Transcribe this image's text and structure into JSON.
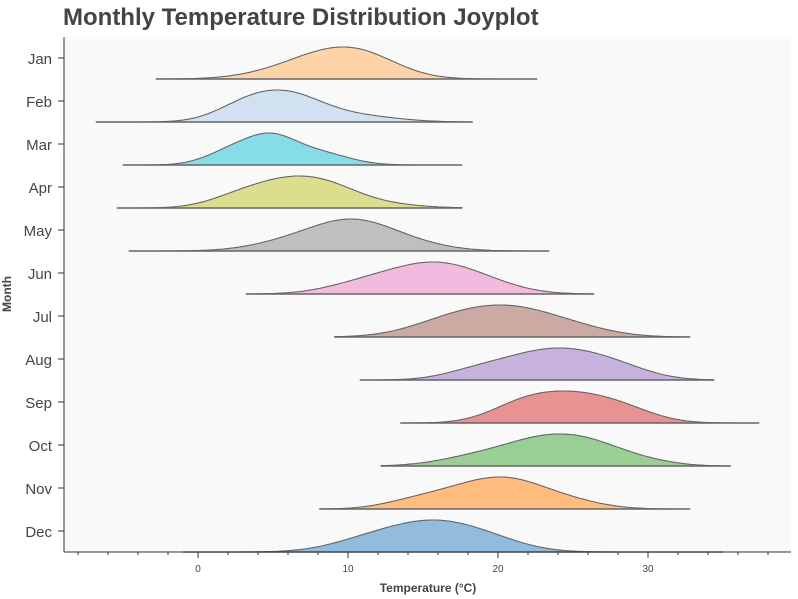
{
  "chart_data": {
    "type": "area",
    "title": "Monthly Temperature Distribution Joyplot",
    "xlabel": "Temperature (°C)",
    "ylabel": "Month",
    "xlim": [
      -9,
      39
    ],
    "xticks": [
      0,
      10,
      20,
      30
    ],
    "categories": [
      "Jan",
      "Feb",
      "Mar",
      "Apr",
      "May",
      "Jun",
      "Jul",
      "Aug",
      "Sep",
      "Oct",
      "Nov",
      "Dec"
    ],
    "grid": false,
    "background": "#f9f9f9",
    "series": [
      {
        "name": "Jan",
        "color": "#ffd1a3",
        "range": [
          -2.8,
          22.6
        ],
        "peaks": [
          [
            11,
            1.0,
            2.5
          ],
          [
            8,
            0.75,
            2.5
          ],
          [
            5,
            0.2,
            2.5
          ]
        ]
      },
      {
        "name": "Feb",
        "color": "#cfdff0",
        "range": [
          -6.8,
          18.3
        ],
        "peaks": [
          [
            6,
            1.0,
            2.4
          ],
          [
            3,
            0.45,
            2.0
          ],
          [
            11,
            0.2,
            2.5
          ]
        ]
      },
      {
        "name": "Mar",
        "color": "#7fdbe6",
        "range": [
          -5.0,
          17.6
        ],
        "peaks": [
          [
            5,
            1.0,
            1.6
          ],
          [
            2.5,
            0.7,
            1.8
          ],
          [
            8,
            0.55,
            2.0
          ]
        ]
      },
      {
        "name": "Apr",
        "color": "#dbdc87",
        "range": [
          -5.4,
          17.6
        ],
        "peaks": [
          [
            5.5,
            1.0,
            2.2
          ],
          [
            8.5,
            0.95,
            2.2
          ],
          [
            2.5,
            0.45,
            2.0
          ],
          [
            12,
            0.2,
            2.5
          ]
        ]
      },
      {
        "name": "May",
        "color": "#bcbcbc",
        "range": [
          -4.6,
          23.4
        ],
        "peaks": [
          [
            10.5,
            1.0,
            2.5
          ],
          [
            7,
            0.5,
            2.8
          ],
          [
            14,
            0.3,
            2.5
          ]
        ]
      },
      {
        "name": "Jun",
        "color": "#f0b6dd",
        "range": [
          3.2,
          26.4
        ],
        "peaks": [
          [
            15.5,
            1.0,
            2.8
          ],
          [
            11,
            0.35,
            2.5
          ],
          [
            19,
            0.3,
            2.5
          ]
        ]
      },
      {
        "name": "Jul",
        "color": "#c8a59f",
        "range": [
          9.1,
          32.8
        ],
        "peaks": [
          [
            21,
            1.0,
            2.8
          ],
          [
            17,
            0.7,
            2.8
          ],
          [
            25,
            0.35,
            2.6
          ]
        ]
      },
      {
        "name": "Aug",
        "color": "#c4aedb",
        "range": [
          10.8,
          34.4
        ],
        "peaks": [
          [
            24.5,
            1.0,
            2.6
          ],
          [
            21,
            0.6,
            2.6
          ],
          [
            28,
            0.45,
            2.3
          ],
          [
            18,
            0.2,
            2.0
          ]
        ]
      },
      {
        "name": "Sep",
        "color": "#e88c8c",
        "range": [
          13.5,
          37.4
        ],
        "peaks": [
          [
            25,
            1.0,
            2.6
          ],
          [
            21.5,
            0.6,
            2.2
          ],
          [
            28.5,
            0.4,
            2.2
          ]
        ]
      },
      {
        "name": "Oct",
        "color": "#93cc8f",
        "range": [
          12.2,
          35.5
        ],
        "peaks": [
          [
            23,
            1.0,
            2.6
          ],
          [
            26.5,
            0.65,
            2.3
          ],
          [
            18.5,
            0.35,
            2.5
          ],
          [
            30,
            0.15,
            2.0
          ]
        ]
      },
      {
        "name": "Nov",
        "color": "#ffb877",
        "range": [
          8.1,
          32.8
        ],
        "peaks": [
          [
            21,
            1.0,
            2.5
          ],
          [
            17.5,
            0.65,
            2.6
          ],
          [
            14,
            0.2,
            2.0
          ],
          [
            25,
            0.25,
            2.2
          ]
        ]
      },
      {
        "name": "Dec",
        "color": "#8db8da",
        "range": [
          -1.0,
          35.0
        ],
        "peaks": [
          [
            15.5,
            1.0,
            3.0
          ],
          [
            11,
            0.3,
            2.5
          ],
          [
            19.5,
            0.3,
            2.5
          ]
        ]
      }
    ]
  }
}
